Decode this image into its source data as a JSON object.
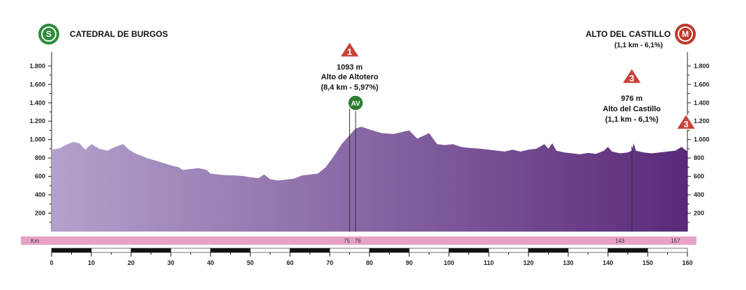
{
  "chart_data": {
    "type": "area",
    "start": {
      "badge": "S",
      "label": "CATEDRAL DE BURGOS"
    },
    "finish": {
      "badge": "M",
      "label": "ALTO DEL CASTILLO",
      "detail": "(1,1 km - 6,1%)"
    },
    "y_ticks": [
      "1.800",
      "1.600",
      "1.400",
      "1.200",
      "1.000",
      "800",
      "600",
      "400",
      "200"
    ],
    "y_tick_values": [
      1800,
      1600,
      1400,
      1200,
      1000,
      800,
      600,
      400,
      200
    ],
    "ylim": [
      0,
      1950
    ],
    "x_ticks": [
      "0",
      "10",
      "20",
      "30",
      "40",
      "50",
      "60",
      "70",
      "80",
      "90",
      "100",
      "110",
      "120",
      "130",
      "140",
      "150",
      "160"
    ],
    "x_tick_values": [
      0,
      10,
      20,
      30,
      40,
      50,
      60,
      70,
      80,
      90,
      100,
      110,
      120,
      130,
      140,
      150,
      160
    ],
    "xlim": [
      0,
      160
    ],
    "km_band": {
      "label": "Km",
      "marks": [
        "75",
        "76",
        "143",
        "157"
      ],
      "mark_values": [
        75,
        76,
        143,
        157
      ]
    },
    "climbs": [
      {
        "category": "1",
        "elevation": "1093 m",
        "name": "Alto de Altotero",
        "detail": "(8,4 km - 5,97%)",
        "km": 75
      },
      {
        "category": "3",
        "elevation": "976 m",
        "name": "Alto del Castillo",
        "detail": "(1,1 km - 6,1%)",
        "km": 146
      },
      {
        "category": "3",
        "km": 160
      }
    ],
    "sprint": {
      "label": "AV",
      "km": 76.5
    },
    "colors": {
      "fill_start": "#b3a1cc",
      "fill_end": "#5a2a7a",
      "km_band": "#e7a3c6",
      "start_badge": "#2f8a3c",
      "finish_badge": "#c0392b",
      "climb_badge": "#c8423a",
      "sprint_badge": "#2e7d32"
    },
    "profile": [
      [
        0,
        890
      ],
      [
        2,
        905
      ],
      [
        4,
        950
      ],
      [
        5.5,
        975
      ],
      [
        7,
        960
      ],
      [
        8.5,
        890
      ],
      [
        10,
        950
      ],
      [
        12,
        900
      ],
      [
        14,
        880
      ],
      [
        16,
        920
      ],
      [
        18,
        950
      ],
      [
        19.5,
        890
      ],
      [
        21,
        850
      ],
      [
        24,
        800
      ],
      [
        27,
        760
      ],
      [
        30,
        720
      ],
      [
        32,
        700
      ],
      [
        33,
        670
      ],
      [
        35,
        680
      ],
      [
        37,
        690
      ],
      [
        39,
        670
      ],
      [
        40,
        630
      ],
      [
        43,
        615
      ],
      [
        46,
        610
      ],
      [
        48,
        605
      ],
      [
        50,
        590
      ],
      [
        52,
        580
      ],
      [
        53.5,
        620
      ],
      [
        55,
        570
      ],
      [
        57,
        555
      ],
      [
        59,
        565
      ],
      [
        61,
        575
      ],
      [
        63,
        610
      ],
      [
        65,
        620
      ],
      [
        67,
        630
      ],
      [
        69,
        700
      ],
      [
        71,
        820
      ],
      [
        73,
        950
      ],
      [
        75,
        1050
      ],
      [
        76.5,
        1120
      ],
      [
        78,
        1140
      ],
      [
        80,
        1110
      ],
      [
        83,
        1070
      ],
      [
        86,
        1060
      ],
      [
        88,
        1080
      ],
      [
        90,
        1100
      ],
      [
        92,
        1010
      ],
      [
        94,
        1050
      ],
      [
        95,
        1070
      ],
      [
        97,
        950
      ],
      [
        99,
        940
      ],
      [
        101,
        950
      ],
      [
        103,
        920
      ],
      [
        105,
        910
      ],
      [
        108,
        900
      ],
      [
        110,
        890
      ],
      [
        112,
        880
      ],
      [
        114,
        870
      ],
      [
        116,
        890
      ],
      [
        118,
        870
      ],
      [
        120,
        890
      ],
      [
        122,
        900
      ],
      [
        124,
        950
      ],
      [
        125,
        900
      ],
      [
        126,
        960
      ],
      [
        127,
        880
      ],
      [
        129,
        860
      ],
      [
        131,
        850
      ],
      [
        133,
        840
      ],
      [
        135,
        855
      ],
      [
        137,
        845
      ],
      [
        139,
        880
      ],
      [
        140,
        920
      ],
      [
        141,
        870
      ],
      [
        143,
        850
      ],
      [
        145,
        860
      ],
      [
        146,
        880
      ],
      [
        146.5,
        960
      ],
      [
        147,
        880
      ],
      [
        149,
        860
      ],
      [
        151,
        850
      ],
      [
        153,
        860
      ],
      [
        155,
        870
      ],
      [
        157,
        880
      ],
      [
        158.5,
        920
      ],
      [
        160,
        870
      ]
    ]
  }
}
